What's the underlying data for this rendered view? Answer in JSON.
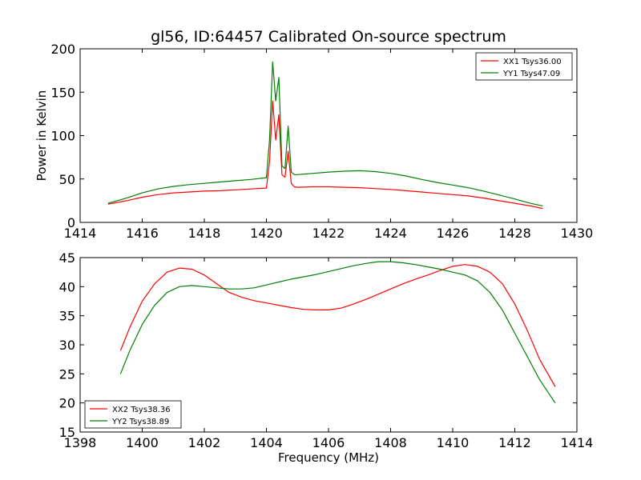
{
  "chart_data": [
    {
      "type": "line",
      "title": "gl56, ID:64457 Calibrated On-source spectrum",
      "xlabel": "",
      "ylabel": "Power in Kelvin",
      "xlim": [
        1414,
        1430
      ],
      "ylim": [
        0,
        200
      ],
      "xticks": [
        1414,
        1416,
        1418,
        1420,
        1422,
        1424,
        1426,
        1428,
        1430
      ],
      "yticks": [
        0,
        50,
        100,
        150,
        200
      ],
      "legend_position": "top-right",
      "series": [
        {
          "name": "XX1 Tsys36.00",
          "color": "#ff0000",
          "x": [
            1414.9,
            1415.5,
            1416,
            1416.5,
            1417,
            1417.5,
            1418,
            1418.5,
            1419,
            1419.5,
            1420,
            1420.1,
            1420.2,
            1420.3,
            1420.4,
            1420.5,
            1420.6,
            1420.7,
            1420.8,
            1420.9,
            1421,
            1421.5,
            1422,
            1422.5,
            1423,
            1423.5,
            1424,
            1424.5,
            1425,
            1425.5,
            1426,
            1426.5,
            1427,
            1427.5,
            1428,
            1428.5,
            1428.9
          ],
          "y": [
            21,
            25,
            29,
            32,
            34,
            35,
            36,
            36.5,
            37.5,
            38.5,
            39.5,
            70,
            140,
            95,
            124,
            55,
            52,
            82,
            45,
            41,
            40.5,
            41,
            41,
            40.5,
            40,
            39,
            38,
            36.5,
            35,
            33.5,
            32,
            30.5,
            28,
            25,
            22,
            19,
            16
          ]
        },
        {
          "name": "YY1 Tsys47.09",
          "color": "#008000",
          "x": [
            1414.9,
            1415.5,
            1416,
            1416.5,
            1417,
            1417.5,
            1418,
            1418.5,
            1419,
            1419.5,
            1420,
            1420.1,
            1420.2,
            1420.3,
            1420.4,
            1420.5,
            1420.6,
            1420.7,
            1420.8,
            1420.9,
            1421,
            1421.5,
            1422,
            1422.5,
            1423,
            1423.5,
            1424,
            1424.5,
            1425,
            1425.5,
            1426,
            1426.5,
            1427,
            1427.5,
            1428,
            1428.5,
            1428.9
          ],
          "y": [
            22,
            28,
            34,
            38.5,
            41.5,
            43.5,
            45,
            46.5,
            48,
            49.5,
            51.5,
            95,
            185,
            140,
            167,
            65,
            62,
            111,
            58,
            55,
            55,
            56.5,
            58,
            59,
            59.5,
            58.5,
            56.5,
            53.5,
            49.5,
            46,
            43,
            40,
            36,
            31.5,
            27,
            22,
            19
          ]
        }
      ]
    },
    {
      "type": "line",
      "title": "",
      "xlabel": "Frequency (MHz)",
      "ylabel": "",
      "xlim": [
        1398,
        1414
      ],
      "ylim": [
        15,
        45
      ],
      "xticks": [
        1398,
        1400,
        1402,
        1404,
        1406,
        1408,
        1410,
        1412,
        1414
      ],
      "yticks": [
        15,
        20,
        25,
        30,
        35,
        40,
        45
      ],
      "legend_position": "bottom-left",
      "series": [
        {
          "name": "XX2 Tsys38.36",
          "color": "#ff0000",
          "x": [
            1399.3,
            1399.6,
            1400,
            1400.4,
            1400.8,
            1401.2,
            1401.6,
            1402,
            1402.4,
            1402.8,
            1403.2,
            1403.6,
            1404,
            1404.4,
            1404.8,
            1405.2,
            1405.6,
            1406,
            1406.4,
            1406.8,
            1407.2,
            1407.6,
            1408,
            1408.4,
            1408.8,
            1409.2,
            1409.6,
            1410,
            1410.4,
            1410.8,
            1411.2,
            1411.6,
            1412,
            1412.4,
            1412.8,
            1413.3
          ],
          "y": [
            29,
            33,
            37.5,
            40.5,
            42.5,
            43.2,
            43,
            42,
            40.5,
            39,
            38.2,
            37.6,
            37.2,
            36.8,
            36.4,
            36.1,
            36,
            36,
            36.3,
            37,
            37.8,
            38.7,
            39.6,
            40.5,
            41.3,
            42,
            42.8,
            43.5,
            43.8,
            43.5,
            42.5,
            40.5,
            37,
            32.5,
            27.5,
            22.8
          ]
        },
        {
          "name": "YY2 Tsys38.89",
          "color": "#008000",
          "x": [
            1399.3,
            1399.6,
            1400,
            1400.4,
            1400.8,
            1401.2,
            1401.6,
            1402,
            1402.4,
            1402.8,
            1403.2,
            1403.6,
            1404,
            1404.4,
            1404.8,
            1405.2,
            1405.6,
            1406,
            1406.4,
            1406.8,
            1407.2,
            1407.6,
            1408,
            1408.4,
            1408.8,
            1409.2,
            1409.6,
            1410,
            1410.4,
            1410.8,
            1411.2,
            1411.6,
            1412,
            1412.4,
            1412.8,
            1413.3
          ],
          "y": [
            25,
            29,
            33.5,
            36.8,
            39,
            40,
            40.2,
            40,
            39.8,
            39.6,
            39.6,
            39.8,
            40.3,
            40.8,
            41.3,
            41.7,
            42.1,
            42.6,
            43.1,
            43.6,
            44,
            44.3,
            44.3,
            44.1,
            43.8,
            43.4,
            43,
            42.5,
            42,
            41,
            39,
            36,
            32,
            28,
            24,
            20
          ]
        }
      ]
    }
  ]
}
